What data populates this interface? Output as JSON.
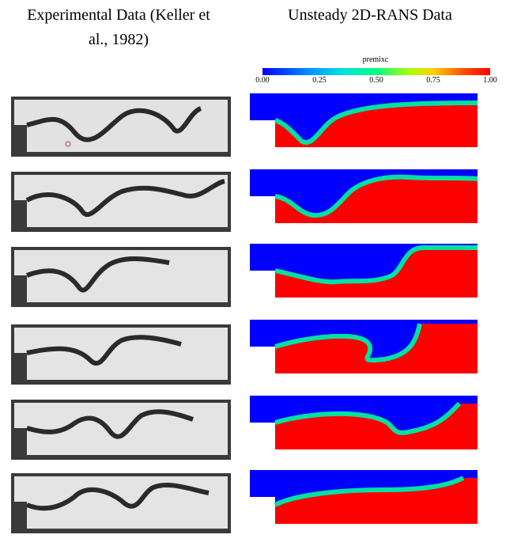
{
  "headings": {
    "left_line1": "Experimental Data (Keller et",
    "left_line2": "al., 1982)",
    "right": "Unsteady 2D-RANS  Data"
  },
  "colorbar": {
    "label": "premixc",
    "ticks": [
      "0.00",
      "0.25",
      "0.50",
      "0.75",
      "1.00"
    ],
    "colors": [
      "#0000ff",
      "#00c8ff",
      "#00ff80",
      "#ffd000",
      "#ff0000"
    ]
  },
  "rows": 6
}
